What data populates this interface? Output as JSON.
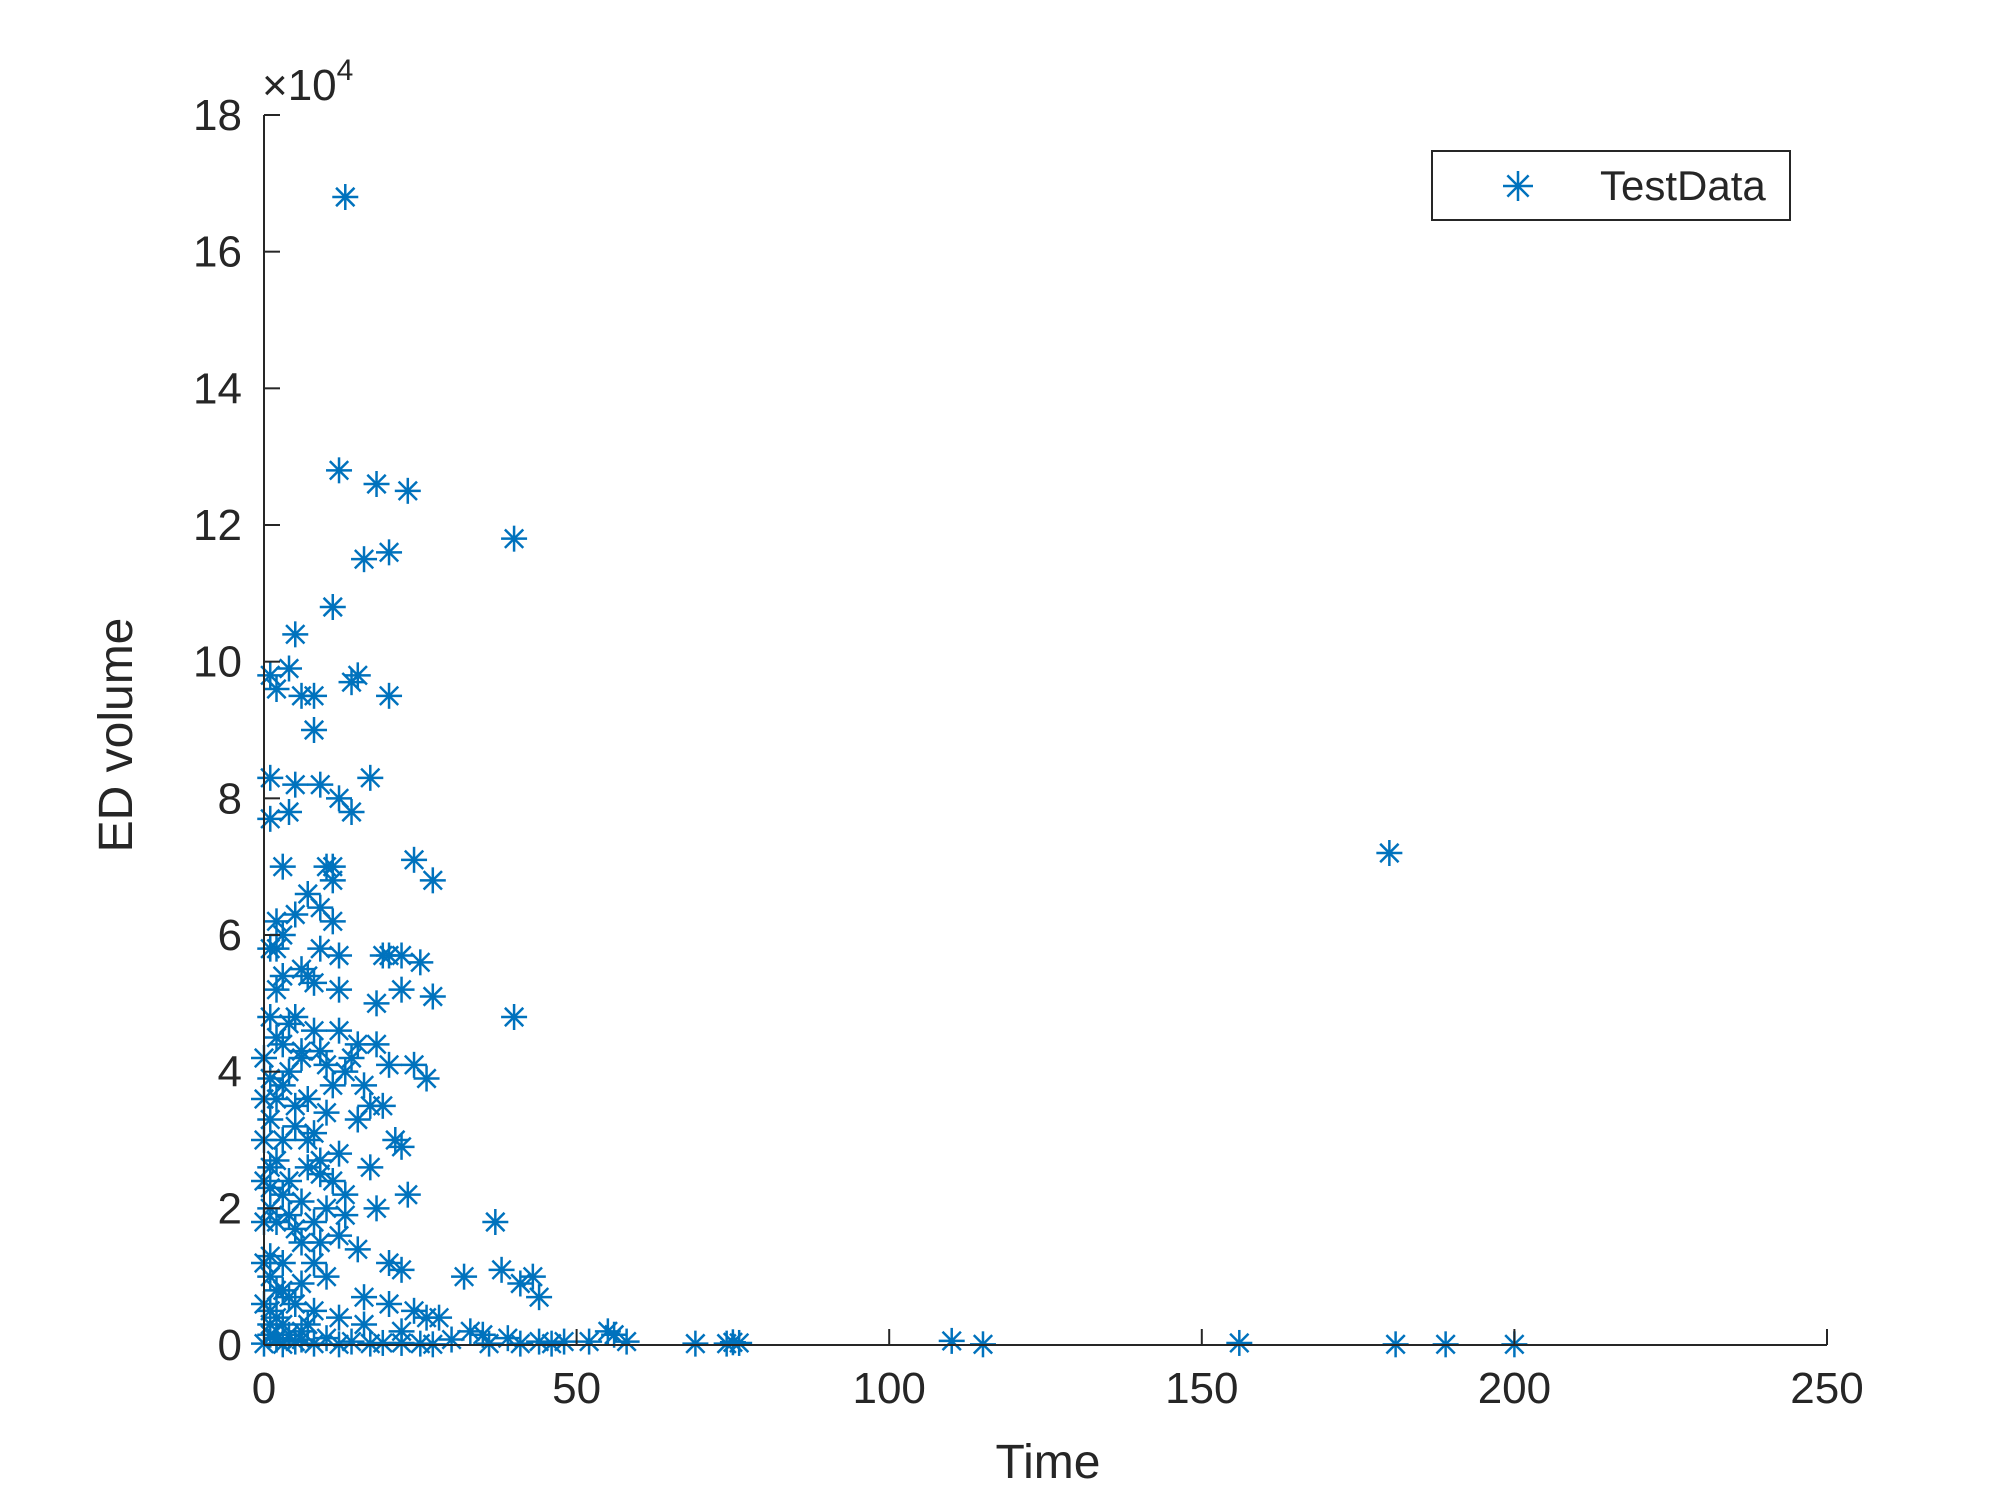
{
  "colors": {
    "marker": "#0072BD",
    "axis": "#262626",
    "background": "#ffffff"
  },
  "chart_data": {
    "type": "scatter",
    "title": "",
    "xlabel": "Time",
    "ylabel": "ED volume",
    "xlim": [
      0,
      250
    ],
    "ylim": [
      0,
      180000
    ],
    "x_ticks": [
      0,
      50,
      100,
      150,
      200,
      250
    ],
    "y_ticks": [
      0,
      20000,
      40000,
      60000,
      80000,
      100000,
      120000,
      140000,
      160000,
      180000
    ],
    "y_tick_labels": [
      "0",
      "2",
      "4",
      "6",
      "8",
      "10",
      "12",
      "14",
      "16",
      "18"
    ],
    "y_exponent_label": "×10",
    "y_exponent_power": "4",
    "grid": false,
    "marker": "asterisk",
    "legend": {
      "position": "top-right",
      "entries": [
        "TestData"
      ]
    },
    "series": [
      {
        "name": "TestData",
        "points": [
          [
            13,
            168000
          ],
          [
            12,
            128000
          ],
          [
            18,
            126000
          ],
          [
            23,
            125000
          ],
          [
            40,
            118000
          ],
          [
            16,
            115000
          ],
          [
            20,
            116000
          ],
          [
            11,
            108000
          ],
          [
            5,
            104000
          ],
          [
            4,
            99000
          ],
          [
            1,
            98000
          ],
          [
            2,
            96000
          ],
          [
            14,
            97000
          ],
          [
            15,
            98000
          ],
          [
            20,
            95000
          ],
          [
            6,
            95000
          ],
          [
            8,
            95000
          ],
          [
            8,
            90000
          ],
          [
            1,
            83000
          ],
          [
            17,
            83000
          ],
          [
            5,
            82000
          ],
          [
            9,
            82000
          ],
          [
            12,
            80000
          ],
          [
            14,
            78000
          ],
          [
            4,
            78000
          ],
          [
            1,
            77000
          ],
          [
            24,
            71000
          ],
          [
            27,
            68000
          ],
          [
            180,
            72000
          ],
          [
            3,
            70000
          ],
          [
            10,
            70000
          ],
          [
            11,
            70000
          ],
          [
            11,
            68000
          ],
          [
            7,
            66000
          ],
          [
            9,
            64000
          ],
          [
            11,
            62000
          ],
          [
            2,
            62000
          ],
          [
            5,
            63000
          ],
          [
            1,
            58000
          ],
          [
            2,
            58000
          ],
          [
            12,
            57000
          ],
          [
            19,
            57000
          ],
          [
            20,
            57000
          ],
          [
            22,
            57000
          ],
          [
            25,
            56000
          ],
          [
            6,
            55000
          ],
          [
            3,
            54000
          ],
          [
            8,
            53000
          ],
          [
            12,
            52000
          ],
          [
            22,
            52000
          ],
          [
            27,
            51000
          ],
          [
            18,
            50000
          ],
          [
            40,
            48000
          ],
          [
            5,
            48000
          ],
          [
            8,
            46000
          ],
          [
            15,
            44000
          ],
          [
            18,
            44000
          ],
          [
            3,
            44000
          ],
          [
            9,
            43000
          ],
          [
            6,
            42000
          ],
          [
            20,
            41000
          ],
          [
            24,
            41000
          ],
          [
            13,
            40000
          ],
          [
            26,
            39000
          ],
          [
            1,
            39000
          ],
          [
            4,
            40000
          ],
          [
            11,
            38000
          ],
          [
            2,
            36000
          ],
          [
            7,
            36000
          ],
          [
            17,
            35000
          ],
          [
            19,
            35000
          ],
          [
            10,
            34000
          ],
          [
            1,
            33000
          ],
          [
            5,
            32000
          ],
          [
            8,
            31000
          ],
          [
            21,
            30000
          ],
          [
            22,
            29000
          ],
          [
            3,
            30000
          ],
          [
            12,
            28000
          ],
          [
            2,
            27000
          ],
          [
            7,
            26000
          ],
          [
            17,
            26000
          ],
          [
            9,
            25000
          ],
          [
            4,
            24000
          ],
          [
            1,
            23000
          ],
          [
            13,
            22000
          ],
          [
            23,
            22000
          ],
          [
            3,
            22000
          ],
          [
            6,
            21000
          ],
          [
            10,
            20000
          ],
          [
            18,
            20000
          ],
          [
            1,
            20000
          ],
          [
            2,
            18000
          ],
          [
            37,
            18000
          ],
          [
            8,
            18000
          ],
          [
            5,
            17000
          ],
          [
            12,
            16000
          ],
          [
            15,
            14000
          ],
          [
            1,
            13000
          ],
          [
            20,
            12000
          ],
          [
            3,
            12000
          ],
          [
            22,
            11000
          ],
          [
            32,
            10000
          ],
          [
            38,
            11000
          ],
          [
            43,
            10000
          ],
          [
            10,
            10000
          ],
          [
            6,
            9000
          ],
          [
            41,
            9000
          ],
          [
            2,
            8000
          ],
          [
            16,
            7000
          ],
          [
            44,
            7000
          ],
          [
            4,
            7000
          ],
          [
            20,
            6000
          ],
          [
            24,
            5000
          ],
          [
            1,
            5000
          ],
          [
            8,
            5000
          ],
          [
            12,
            4000
          ],
          [
            26,
            4000
          ],
          [
            28,
            4000
          ],
          [
            3,
            3000
          ],
          [
            16,
            3000
          ],
          [
            33,
            2000
          ],
          [
            35,
            1500
          ],
          [
            6,
            2000
          ],
          [
            22,
            2000
          ],
          [
            1,
            1500
          ],
          [
            39,
            1000
          ],
          [
            55,
            2000
          ],
          [
            56,
            1500
          ],
          [
            10,
            1000
          ],
          [
            2,
            800
          ],
          [
            30,
            800
          ],
          [
            44,
            500
          ],
          [
            48,
            500
          ],
          [
            52,
            500
          ],
          [
            58,
            500
          ],
          [
            5,
            500
          ],
          [
            14,
            500
          ],
          [
            19,
            300
          ],
          [
            25,
            200
          ],
          [
            36,
            200
          ],
          [
            41,
            200
          ],
          [
            46,
            200
          ],
          [
            69,
            200
          ],
          [
            74,
            200
          ],
          [
            75,
            400
          ],
          [
            76,
            300
          ],
          [
            110,
            600
          ],
          [
            115,
            100
          ],
          [
            156,
            300
          ],
          [
            181,
            100
          ],
          [
            189,
            100
          ],
          [
            200,
            100
          ],
          [
            0,
            200
          ],
          [
            3,
            100
          ],
          [
            8,
            200
          ],
          [
            12,
            100
          ],
          [
            17,
            200
          ],
          [
            22,
            300
          ],
          [
            27,
            100
          ],
          [
            2,
            45000
          ],
          [
            4,
            47000
          ],
          [
            6,
            43000
          ],
          [
            3,
            38000
          ],
          [
            5,
            35000
          ],
          [
            7,
            30000
          ],
          [
            9,
            27000
          ],
          [
            1,
            26000
          ],
          [
            4,
            19000
          ],
          [
            6,
            15000
          ],
          [
            8,
            12000
          ],
          [
            1,
            10000
          ],
          [
            3,
            8000
          ],
          [
            5,
            6000
          ],
          [
            2,
            4000
          ],
          [
            7,
            3000
          ],
          [
            9,
            15000
          ],
          [
            11,
            24000
          ],
          [
            13,
            19000
          ],
          [
            15,
            33000
          ],
          [
            14,
            42000
          ],
          [
            12,
            46000
          ],
          [
            10,
            41000
          ],
          [
            16,
            38000
          ],
          [
            7,
            54000
          ],
          [
            9,
            58000
          ],
          [
            3,
            60000
          ],
          [
            2,
            52000
          ],
          [
            1,
            48000
          ],
          [
            0,
            42000
          ],
          [
            0,
            36000
          ],
          [
            0,
            30000
          ],
          [
            0,
            24000
          ],
          [
            0,
            18000
          ],
          [
            0,
            12000
          ],
          [
            0,
            6000
          ],
          [
            1,
            3000
          ],
          [
            2,
            1000
          ],
          [
            4,
            1500
          ],
          [
            6,
            800
          ]
        ]
      }
    ]
  }
}
